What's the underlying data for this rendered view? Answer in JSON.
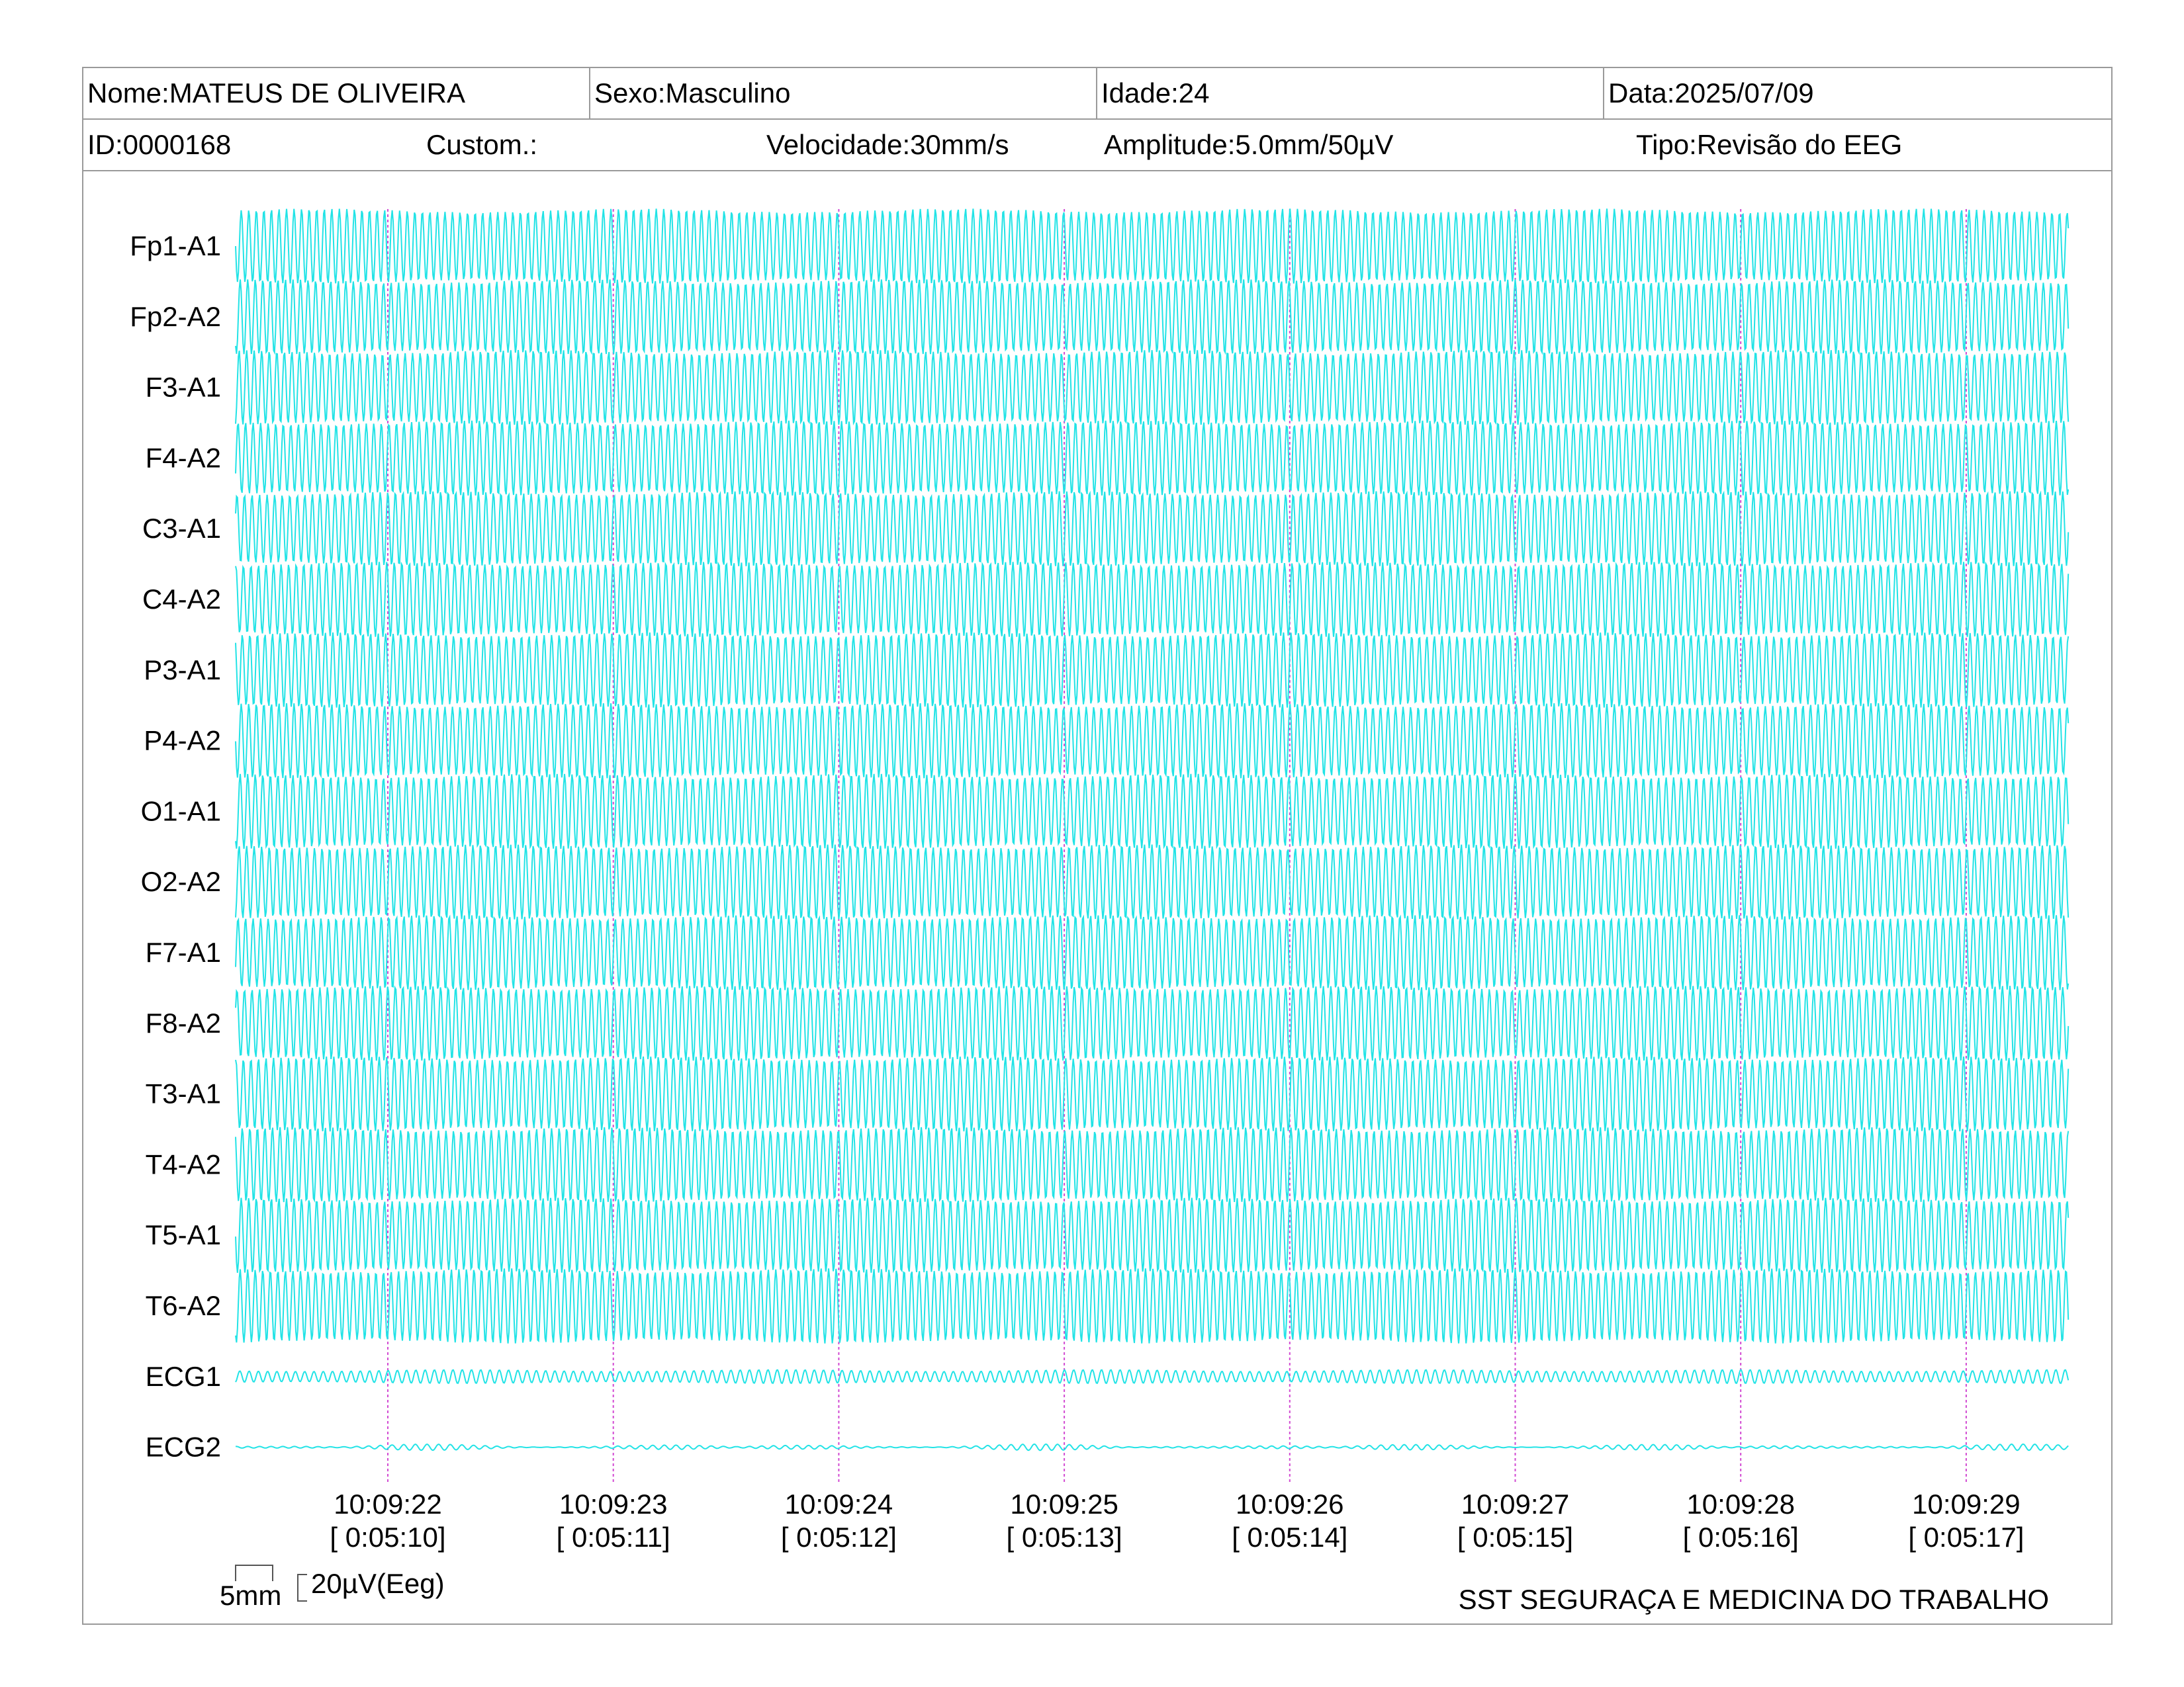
{
  "header": {
    "name": "Nome:MATEUS DE OLIVEIRA",
    "sex": "Sexo:Masculino",
    "age": "Idade:24",
    "date": "Data:2025/07/09",
    "id": "ID:0000168",
    "custom": "Custom.:",
    "speed": "Velocidade:30mm/s",
    "amplitude": "Amplitude:5.0mm/50µV",
    "type": "Tipo:Revisão do EEG"
  },
  "channels": [
    "Fp1-A1",
    "Fp2-A2",
    "F3-A1",
    "F4-A2",
    "C3-A1",
    "C4-A2",
    "P3-A1",
    "P4-A2",
    "O1-A1",
    "O2-A2",
    "F7-A1",
    "F8-A2",
    "T3-A1",
    "T4-A2",
    "T5-A1",
    "T6-A2",
    "ECG1",
    "ECG2"
  ],
  "timestamps": [
    {
      "time": "10:09:22",
      "elapsed": "[ 0:05:10]"
    },
    {
      "time": "10:09:23",
      "elapsed": "[ 0:05:11]"
    },
    {
      "time": "10:09:24",
      "elapsed": "[ 0:05:12]"
    },
    {
      "time": "10:09:25",
      "elapsed": "[ 0:05:13]"
    },
    {
      "time": "10:09:26",
      "elapsed": "[ 0:05:14]"
    },
    {
      "time": "10:09:27",
      "elapsed": "[ 0:05:15]"
    },
    {
      "time": "10:09:28",
      "elapsed": "[ 0:05:16]"
    },
    {
      "time": "10:09:29",
      "elapsed": "[ 0:05:17]"
    }
  ],
  "scale": {
    "time_label": "5mm",
    "amp_label": "20µV(Eeg)"
  },
  "footer": {
    "company": "SST SEGURAÇA E MEDICINA DO TRABALHO"
  },
  "colors": {
    "trace": "#22e3e6",
    "marker": "#d24ad2",
    "border": "#9a9a9a"
  }
}
